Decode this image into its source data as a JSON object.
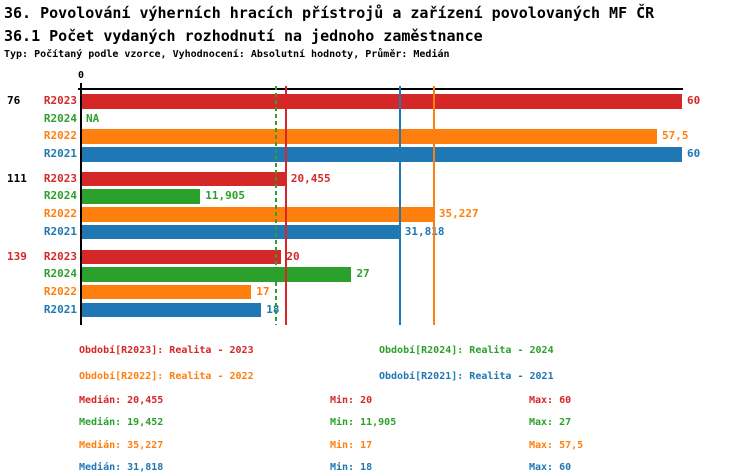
{
  "header": {
    "title": "36. Povolování výherních hracích přístrojů a zařízení povolovaných MF ČR",
    "subtitle": "36.1 Počet vydaných rozhodnutí na jednoho zaměstnance",
    "meta": "Typ: Počítaný podle vzorce, Vyhodnocení: Absolutní hodnoty, Průměr: Medián"
  },
  "chart_data": {
    "type": "bar",
    "orientation": "horizontal",
    "xlim": [
      0,
      60
    ],
    "axis_zero_label": "0",
    "grid": false,
    "colors": {
      "R2023": "#d62728",
      "R2024": "#2ca02c",
      "R2022": "#ff7f0e",
      "R2021": "#1f77b4"
    },
    "groups": [
      {
        "label": "76",
        "label_color": "#000000",
        "bars": [
          {
            "series": "R2023",
            "value": 60,
            "display": "60"
          },
          {
            "series": "R2024",
            "value": null,
            "display": "NA"
          },
          {
            "series": "R2022",
            "value": 57.5,
            "display": "57,5"
          },
          {
            "series": "R2021",
            "value": 60,
            "display": "60"
          }
        ]
      },
      {
        "label": "111",
        "label_color": "#000000",
        "bars": [
          {
            "series": "R2023",
            "value": 20.455,
            "display": "20,455"
          },
          {
            "series": "R2024",
            "value": 11.905,
            "display": "11,905"
          },
          {
            "series": "R2022",
            "value": 35.227,
            "display": "35,227"
          },
          {
            "series": "R2021",
            "value": 31.818,
            "display": "31,818"
          }
        ]
      },
      {
        "label": "139",
        "label_color": "#d62728",
        "bars": [
          {
            "series": "R2023",
            "value": 20,
            "display": "20"
          },
          {
            "series": "R2024",
            "value": 27,
            "display": "27"
          },
          {
            "series": "R2022",
            "value": 17,
            "display": "17"
          },
          {
            "series": "R2021",
            "value": 18,
            "display": "18"
          }
        ]
      }
    ],
    "median_lines": [
      {
        "series": "R2023",
        "value": 20.455,
        "style": "solid"
      },
      {
        "series": "R2024",
        "value": 19.452,
        "style": "dashed"
      },
      {
        "series": "R2022",
        "value": 35.227,
        "style": "solid"
      },
      {
        "series": "R2021",
        "value": 31.818,
        "style": "solid"
      }
    ],
    "legend": [
      {
        "series": "R2023",
        "label": "Období[R2023]: Realita - 2023"
      },
      {
        "series": "R2024",
        "label": "Období[R2024]: Realita - 2024"
      },
      {
        "series": "R2022",
        "label": "Období[R2022]: Realita - 2022"
      },
      {
        "series": "R2021",
        "label": "Období[R2021]: Realita - 2021"
      }
    ],
    "stats": [
      {
        "series": "R2023",
        "median": "Medián: 20,455",
        "min": "Min: 20",
        "max": "Max: 60"
      },
      {
        "series": "R2024",
        "median": "Medián: 19,452",
        "min": "Min: 11,905",
        "max": "Max: 27"
      },
      {
        "series": "R2022",
        "median": "Medián: 35,227",
        "min": "Min: 17",
        "max": "Max: 57,5"
      },
      {
        "series": "R2021",
        "median": "Medián: 31,818",
        "min": "Min: 18",
        "max": "Max: 60"
      }
    ]
  }
}
